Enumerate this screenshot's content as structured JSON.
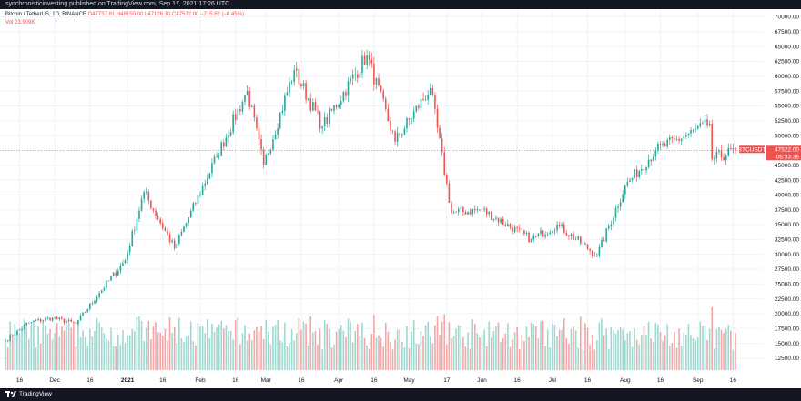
{
  "header": {
    "published": "synchronisticinvesting published on TradingView.com, Sep 17, 2021 17:26 UTC"
  },
  "legend": {
    "symbol": "Bitcoin / TetherUS, 1D, BINANCE",
    "ohlc": "O47737.81 H48150.00 L47126.10 C47522.00 −215.82 (−0.45%)",
    "volume": "Vol 23.909K"
  },
  "branding": {
    "name": "TradingView",
    "icon": "tradingview-logo-icon"
  },
  "price_label": {
    "symbol": "BTCUSDT",
    "price": "47522.00",
    "countdown": "06:33:36"
  },
  "colors": {
    "up": "#26a69a",
    "down": "#ef5350",
    "up_volume": "#9fd8cf",
    "down_volume": "#f3a6a6",
    "grid": "#f0f3fa",
    "bar_bg": "#131722"
  },
  "chart_data": {
    "type": "candlestick",
    "title": "Bitcoin / TetherUS, 1D, BINANCE",
    "y_axis": {
      "ticks": [
        12500,
        15000,
        17500,
        20000,
        22500,
        25000,
        27500,
        30000,
        32500,
        35000,
        37500,
        40000,
        42500,
        45000,
        47500,
        50000,
        52500,
        55000,
        57500,
        60000,
        62500,
        65000,
        67500,
        70000
      ],
      "range": [
        10500,
        71000
      ]
    },
    "x_axis": {
      "labels": [
        "16",
        "Dec",
        "16",
        "2021",
        "16",
        "Feb",
        "16",
        "Mar",
        "16",
        "Apr",
        "16",
        "May",
        "17",
        "Jun",
        "16",
        "Jul",
        "16",
        "Aug",
        "16",
        "Sep",
        "16"
      ]
    },
    "last_close": 47522,
    "series": [
      {
        "date": "2020-11-10",
        "close": 15500
      },
      {
        "date": "2020-11-20",
        "close": 18500
      },
      {
        "date": "2020-11-30",
        "close": 19300
      },
      {
        "date": "2020-12-10",
        "close": 18300
      },
      {
        "date": "2020-12-20",
        "close": 23500
      },
      {
        "date": "2020-12-31",
        "close": 29000
      },
      {
        "date": "2021-01-08",
        "close": 40500
      },
      {
        "date": "2021-01-21",
        "close": 31000
      },
      {
        "date": "2021-02-08",
        "close": 46500
      },
      {
        "date": "2021-02-21",
        "close": 57500
      },
      {
        "date": "2021-02-28",
        "close": 45000
      },
      {
        "date": "2021-03-13",
        "close": 61000
      },
      {
        "date": "2021-03-25",
        "close": 51500
      },
      {
        "date": "2021-04-13",
        "close": 63500
      },
      {
        "date": "2021-04-25",
        "close": 49000
      },
      {
        "date": "2021-05-10",
        "close": 58000
      },
      {
        "date": "2021-05-19",
        "close": 37000
      },
      {
        "date": "2021-06-01",
        "close": 37500
      },
      {
        "date": "2021-06-22",
        "close": 32500
      },
      {
        "date": "2021-07-03",
        "close": 35000
      },
      {
        "date": "2021-07-20",
        "close": 29800
      },
      {
        "date": "2021-08-01",
        "close": 41500
      },
      {
        "date": "2021-08-14",
        "close": 47500
      },
      {
        "date": "2021-09-06",
        "close": 52000
      },
      {
        "date": "2021-09-07",
        "close": 46000
      },
      {
        "date": "2021-09-17",
        "close": 47522
      }
    ],
    "volume_notes": "volume histogram in lower panel"
  }
}
